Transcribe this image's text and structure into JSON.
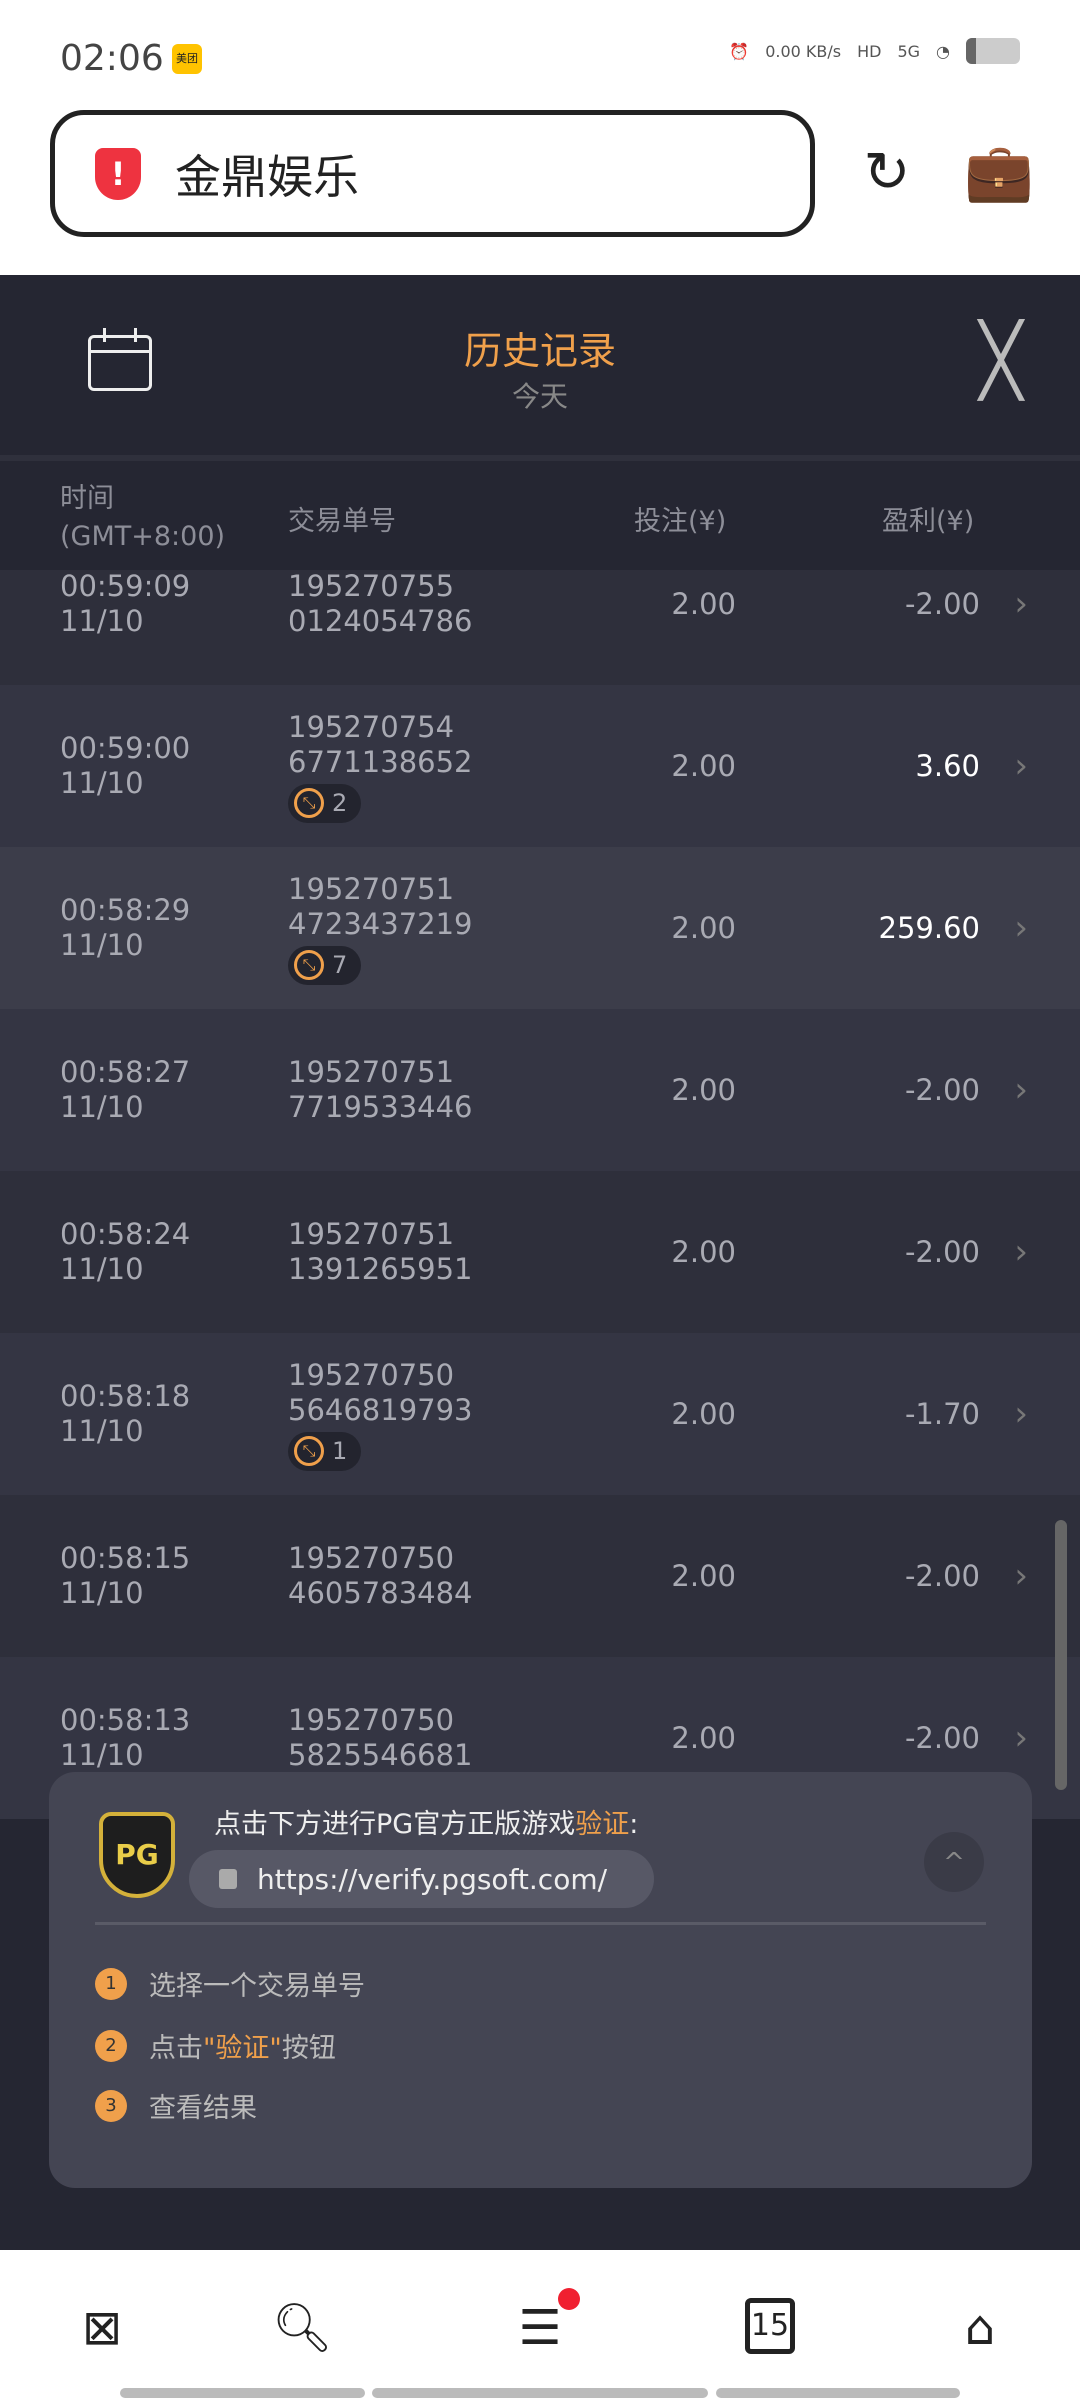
{
  "status_bar": {
    "time": "02:06",
    "app_badge": "美团",
    "net_speed": "0.00 KB/s",
    "hd": "HD",
    "network": "5G"
  },
  "browser": {
    "url_title": "金鼎娱乐",
    "security_icon": "warning-shield-icon",
    "reload_icon": "reload-icon",
    "toolbox_icon": "toolbox-icon"
  },
  "header": {
    "title": "历史记录",
    "subtitle": "今天"
  },
  "columns": {
    "time": "时间",
    "timezone": "(GMT+8:00)",
    "txn": "交易单号",
    "bet": "投注(¥)",
    "profit": "盈利(¥)"
  },
  "rows": [
    {
      "time": "00:59:09",
      "date": "11/10",
      "id1": "195270755",
      "id2": "0124054786",
      "bet": "2.00",
      "profit": "-2.00",
      "badge": ""
    },
    {
      "time": "00:59:00",
      "date": "11/10",
      "id1": "195270754",
      "id2": "6771138652",
      "bet": "2.00",
      "profit": "3.60",
      "badge": "2"
    },
    {
      "time": "00:58:29",
      "date": "11/10",
      "id1": "195270751",
      "id2": "4723437219",
      "bet": "2.00",
      "profit": "259.60",
      "badge": "7"
    },
    {
      "time": "00:58:27",
      "date": "11/10",
      "id1": "195270751",
      "id2": "7719533446",
      "bet": "2.00",
      "profit": "-2.00",
      "badge": ""
    },
    {
      "time": "00:58:24",
      "date": "11/10",
      "id1": "195270751",
      "id2": "1391265951",
      "bet": "2.00",
      "profit": "-2.00",
      "badge": ""
    },
    {
      "time": "00:58:18",
      "date": "11/10",
      "id1": "195270750",
      "id2": "5646819793",
      "bet": "2.00",
      "profit": "-1.70",
      "badge": "1"
    },
    {
      "time": "00:58:15",
      "date": "11/10",
      "id1": "195270750",
      "id2": "4605783484",
      "bet": "2.00",
      "profit": "-2.00",
      "badge": ""
    },
    {
      "time": "00:58:13",
      "date": "11/10",
      "id1": "195270750",
      "id2": "5825546681",
      "bet": "2.00",
      "profit": "-2.00",
      "badge": ""
    }
  ],
  "verify": {
    "logo": "PG",
    "msg_prefix": "点击下方进行PG官方正版游戏",
    "msg_highlight": "验证",
    "msg_suffix": ":",
    "url": "https://verify.pgsoft.com/",
    "steps": [
      {
        "n": "1",
        "text": "选择一个交易单号"
      },
      {
        "n": "2",
        "pre": "点击",
        "hl": "\"验证\"",
        "post": "按钮"
      },
      {
        "n": "3",
        "text": "查看结果"
      }
    ]
  },
  "nav": {
    "tabs_count": "15"
  },
  "colors": {
    "accent": "#f0a04b",
    "panel": "#252632"
  }
}
